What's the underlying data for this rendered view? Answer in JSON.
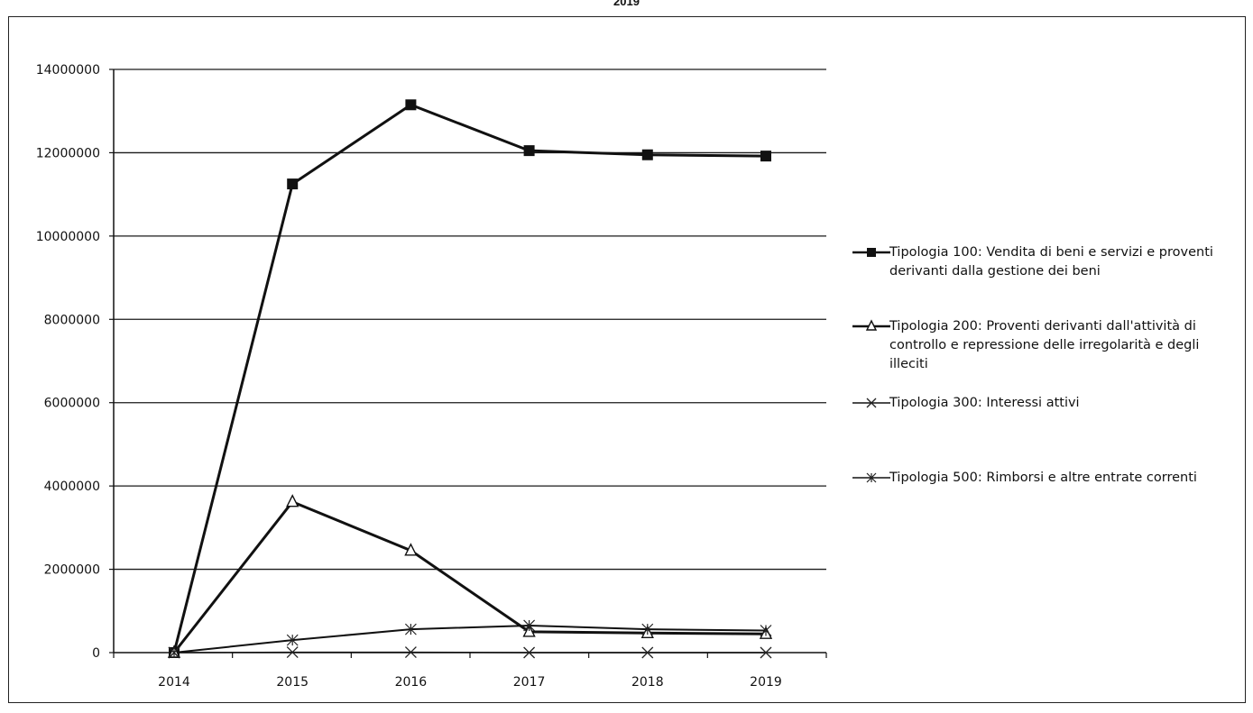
{
  "header": {
    "partial_title": "2019"
  },
  "chart_data": {
    "type": "line",
    "title": "",
    "xlabel": "",
    "ylabel": "",
    "categories": [
      "2014",
      "2015",
      "2016",
      "2017",
      "2018",
      "2019"
    ],
    "ylim": [
      0,
      14000000
    ],
    "yticks": [
      0,
      2000000,
      4000000,
      6000000,
      8000000,
      10000000,
      12000000,
      14000000
    ],
    "ytick_labels": [
      "0",
      "2000000",
      "4000000",
      "6000000",
      "8000000",
      "10000000",
      "12000000",
      "14000000"
    ],
    "grid": "horizontal",
    "legend_position": "right",
    "series": [
      {
        "name": "Tipologia 100: Vendita di beni e servizi e proventi derivanti dalla gestione dei beni",
        "legend_lines": [
          "Tipologia 100: Vendita di beni e servizi e proventi",
          "derivanti dalla gestione dei beni"
        ],
        "marker": "square",
        "color": "#111111",
        "values": [
          0,
          11250000,
          13150000,
          12050000,
          11950000,
          11920000
        ]
      },
      {
        "name": "Tipologia 200: Proventi derivanti dall'attività di controllo e repressione delle irregolarità e degli illeciti",
        "legend_lines": [
          "Tipologia 200: Proventi derivanti dall'attività di",
          "controllo e repressione delle irregolarità e degli",
          "illeciti"
        ],
        "marker": "triangle",
        "color": "#111111",
        "values": [
          0,
          3620000,
          2450000,
          500000,
          470000,
          450000
        ]
      },
      {
        "name": "Tipologia 300: Interessi attivi",
        "legend_lines": [
          "Tipologia 300: Interessi attivi"
        ],
        "marker": "x",
        "color": "#111111",
        "values": [
          0,
          10000,
          10000,
          0,
          0,
          0
        ]
      },
      {
        "name": "Tipologia 500: Rimborsi e altre entrate correnti",
        "legend_lines": [
          "Tipologia 500: Rimborsi e altre entrate correnti"
        ],
        "marker": "asterisk",
        "color": "#111111",
        "values": [
          0,
          300000,
          560000,
          650000,
          560000,
          530000
        ]
      }
    ]
  }
}
